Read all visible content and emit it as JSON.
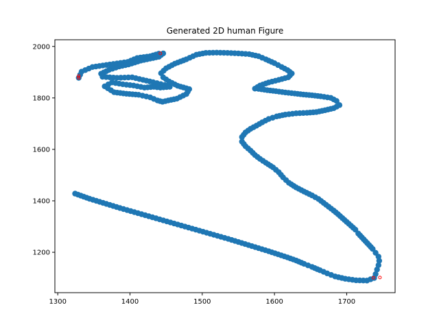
{
  "chart_data": {
    "type": "scatter",
    "title": "Generated 2D human Figure",
    "xlabel": "",
    "ylabel": "",
    "xlim": [
      1296,
      1767
    ],
    "ylim": [
      1043,
      2026
    ],
    "xticks": [
      1300,
      1400,
      1500,
      1600,
      1700
    ],
    "yticks": [
      1200,
      1400,
      1600,
      1800,
      2000
    ],
    "grid": false,
    "point_color": "#1f77b4",
    "marker_color": "#ff0000",
    "outline": [
      [
        1329,
        1878
      ],
      [
        1333,
        1902
      ],
      [
        1348,
        1920
      ],
      [
        1372,
        1930
      ],
      [
        1397,
        1940
      ],
      [
        1410,
        1955
      ],
      [
        1428,
        1962
      ],
      [
        1440,
        1972
      ],
      [
        1446,
        1973
      ],
      [
        1440,
        1960
      ],
      [
        1432,
        1955
      ],
      [
        1415,
        1945
      ],
      [
        1398,
        1930
      ],
      [
        1385,
        1922
      ],
      [
        1371,
        1909
      ],
      [
        1360,
        1894
      ],
      [
        1362,
        1882
      ],
      [
        1382,
        1878
      ],
      [
        1403,
        1880
      ],
      [
        1418,
        1870
      ],
      [
        1432,
        1861
      ],
      [
        1448,
        1850
      ],
      [
        1455,
        1843
      ],
      [
        1442,
        1840
      ],
      [
        1433,
        1843
      ],
      [
        1420,
        1840
      ],
      [
        1405,
        1848
      ],
      [
        1390,
        1853
      ],
      [
        1375,
        1860
      ],
      [
        1365,
        1845
      ],
      [
        1378,
        1822
      ],
      [
        1395,
        1816
      ],
      [
        1412,
        1812
      ],
      [
        1428,
        1802
      ],
      [
        1438,
        1790
      ],
      [
        1445,
        1785
      ],
      [
        1453,
        1790
      ],
      [
        1465,
        1797
      ],
      [
        1478,
        1815
      ],
      [
        1482,
        1834
      ],
      [
        1466,
        1847
      ],
      [
        1454,
        1864
      ],
      [
        1446,
        1880
      ],
      [
        1443,
        1896
      ],
      [
        1450,
        1915
      ],
      [
        1462,
        1933
      ],
      [
        1478,
        1950
      ],
      [
        1492,
        1968
      ],
      [
        1505,
        1975
      ],
      [
        1520,
        1976
      ],
      [
        1535,
        1975
      ],
      [
        1550,
        1973
      ],
      [
        1565,
        1970
      ],
      [
        1578,
        1962
      ],
      [
        1588,
        1950
      ],
      [
        1600,
        1935
      ],
      [
        1610,
        1920
      ],
      [
        1618,
        1908
      ],
      [
        1624,
        1895
      ],
      [
        1619,
        1880
      ],
      [
        1606,
        1870
      ],
      [
        1592,
        1860
      ],
      [
        1580,
        1848
      ],
      [
        1573,
        1836
      ],
      [
        1578,
        1835
      ],
      [
        1590,
        1830
      ],
      [
        1602,
        1826
      ],
      [
        1615,
        1821
      ],
      [
        1628,
        1817
      ],
      [
        1640,
        1813
      ],
      [
        1652,
        1810
      ],
      [
        1664,
        1806
      ],
      [
        1678,
        1800
      ],
      [
        1686,
        1788
      ],
      [
        1690,
        1772
      ],
      [
        1682,
        1760
      ],
      [
        1670,
        1752
      ],
      [
        1658,
        1745
      ],
      [
        1645,
        1742
      ],
      [
        1630,
        1740
      ],
      [
        1615,
        1735
      ],
      [
        1603,
        1728
      ],
      [
        1592,
        1718
      ],
      [
        1583,
        1705
      ],
      [
        1575,
        1692
      ],
      [
        1567,
        1680
      ],
      [
        1560,
        1666
      ],
      [
        1555,
        1648
      ],
      [
        1555,
        1630
      ],
      [
        1560,
        1612
      ],
      [
        1567,
        1595
      ],
      [
        1573,
        1578
      ],
      [
        1580,
        1563
      ],
      [
        1588,
        1548
      ],
      [
        1598,
        1530
      ],
      [
        1606,
        1511
      ],
      [
        1612,
        1491
      ],
      [
        1620,
        1470
      ],
      [
        1630,
        1452
      ],
      [
        1641,
        1436
      ],
      [
        1652,
        1421
      ],
      [
        1661,
        1407
      ],
      [
        1668,
        1392
      ],
      [
        1675,
        1377
      ],
      [
        1682,
        1362
      ],
      [
        1688,
        1348
      ],
      [
        1694,
        1333
      ],
      [
        1700,
        1318
      ],
      [
        1706,
        1303
      ],
      [
        1712,
        1288
      ],
      [
        1716,
        1273
      ],
      [
        1721,
        1258
      ],
      [
        1726,
        1243
      ],
      [
        1731,
        1228
      ],
      [
        1736,
        1213
      ],
      [
        1740,
        1198
      ],
      [
        1744,
        1183
      ],
      [
        1745,
        1167
      ],
      [
        1744,
        1150
      ],
      [
        1742,
        1133
      ],
      [
        1740,
        1115
      ],
      [
        1738,
        1100
      ],
      [
        1728,
        1090
      ],
      [
        1713,
        1091
      ],
      [
        1698,
        1097
      ],
      [
        1684,
        1106
      ],
      [
        1673,
        1118
      ],
      [
        1663,
        1130
      ],
      [
        1652,
        1143
      ],
      [
        1641,
        1155
      ],
      [
        1630,
        1168
      ],
      [
        1618,
        1180
      ],
      [
        1605,
        1192
      ],
      [
        1592,
        1204
      ],
      [
        1578,
        1216
      ],
      [
        1564,
        1228
      ],
      [
        1550,
        1240
      ],
      [
        1536,
        1252
      ],
      [
        1521,
        1264
      ],
      [
        1506,
        1276
      ],
      [
        1491,
        1288
      ],
      [
        1476,
        1300
      ],
      [
        1461,
        1312
      ],
      [
        1446,
        1324
      ],
      [
        1431,
        1336
      ],
      [
        1416,
        1348
      ],
      [
        1401,
        1360
      ],
      [
        1386,
        1372
      ],
      [
        1372,
        1384
      ],
      [
        1358,
        1396
      ],
      [
        1344,
        1408
      ],
      [
        1332,
        1420
      ],
      [
        1320,
        1432
      ]
    ],
    "markers": [
      [
        1329,
        1878
      ],
      [
        1329,
        1885
      ],
      [
        1442,
        1973
      ],
      [
        1737,
        1101
      ],
      [
        1746,
        1102
      ]
    ]
  }
}
